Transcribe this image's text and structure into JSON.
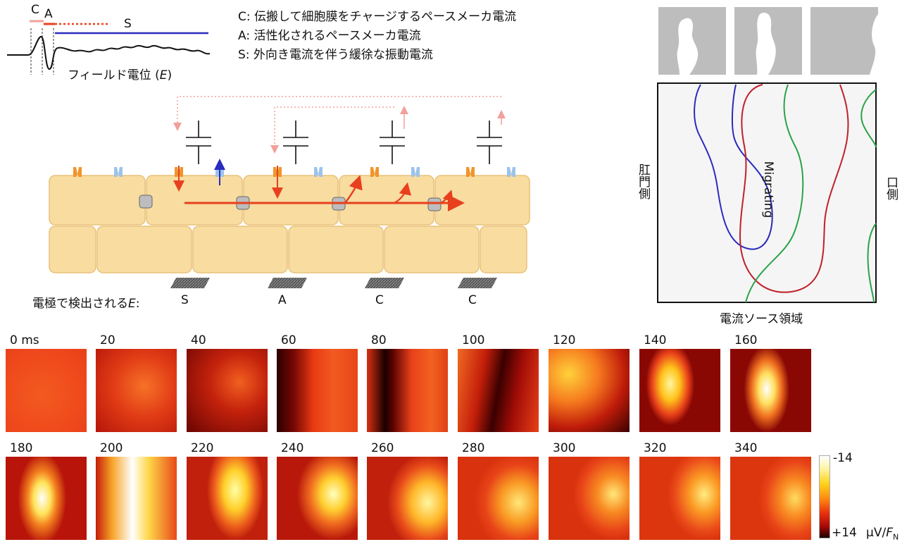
{
  "trace": {
    "label_c": "C",
    "label_a": "A",
    "label_s": "S",
    "caption_main": "フィールド電位 (",
    "caption_var": "E",
    "caption_end": ")"
  },
  "legend": {
    "c": "C: 伝搬して細胞膜をチャージするペースメーカ電流",
    "a": "A: 活性化されるペースメーカ電流",
    "s": "S: 外向き電流を伴う緩徐な振動電流"
  },
  "electrodes": {
    "label_main": "電極で検出される",
    "label_var": "E",
    "label_end": ":",
    "items": [
      "S",
      "A",
      "C",
      "C"
    ]
  },
  "map": {
    "left_label": "肛門側",
    "right_label": "口側",
    "bottom_label": "電流ソース領域",
    "center_label": "Migrating"
  },
  "frames": {
    "times": [
      "0 ms",
      "20",
      "40",
      "60",
      "80",
      "100",
      "120",
      "140",
      "160",
      "180",
      "200",
      "220",
      "240",
      "260",
      "280",
      "300",
      "320",
      "340"
    ]
  },
  "colorbar": {
    "top": "-14",
    "bottom": "+14",
    "unit_main": "μV/",
    "unit_var": "F",
    "unit_sub": "N"
  },
  "colors": {
    "pacemaker_red": "#e8401f",
    "dotted_pink": "#f2a09a",
    "blue_line": "#2b2bbf",
    "cell_fill": "#f8dca0",
    "cell_stroke": "#e9c27a",
    "green_line": "#2aa24a",
    "map_bg": "#f5f5f5"
  }
}
